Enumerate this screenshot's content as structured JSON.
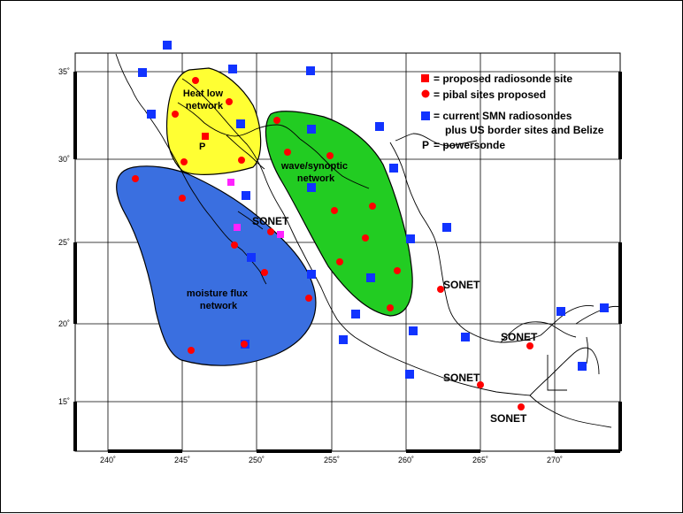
{
  "legend": {
    "proposed_radiosonde": "= proposed radiosonde site",
    "pibal": "=  pibal sites proposed",
    "smn_line1": "= current SMN radiosondes",
    "smn_line2": "plus US border sites and Belize",
    "powersonde_symbol": "P",
    "powersonde": "=  powersonde"
  },
  "regions": {
    "heat_low": "Heat low network",
    "wave": "wave/synoptic network",
    "moisture": "moisture flux network"
  },
  "region_colors": {
    "heat_low": "#ffff33",
    "wave": "#22cc22",
    "moisture": "#3a6fe0"
  },
  "marker_colors": {
    "radiosonde": "#ff0000",
    "pibal": "#ff0000",
    "smn": "#1133ff",
    "magenta": "#ff22ff"
  },
  "powersonde_label": "P",
  "sonet_label": "SONET",
  "axes": {
    "lon_ticks": [
      "240˚",
      "245˚",
      "250˚",
      "255˚",
      "260˚",
      "265˚",
      "270˚"
    ],
    "lat_ticks": [
      "35˚",
      "30˚",
      "25˚",
      "20˚",
      "15˚"
    ]
  }
}
